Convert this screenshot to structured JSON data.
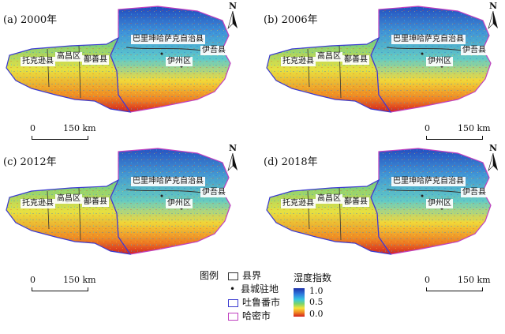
{
  "panels": [
    {
      "label": "(a) 2000年",
      "north": "N",
      "scale": {
        "zero": "0",
        "dist": "150 km"
      }
    },
    {
      "label": "(b) 2006年",
      "north": "N",
      "scale": {
        "zero": "0",
        "dist": "150 km"
      }
    },
    {
      "label": "(c) 2012年",
      "north": "N",
      "scale": {
        "zero": "0",
        "dist": "150 km"
      }
    },
    {
      "label": "(d) 2018年",
      "north": "N",
      "scale": {
        "zero": "0",
        "dist": "150 km"
      }
    }
  ],
  "places": {
    "barkol": "巴里坤哈萨克自治县",
    "yiwu": "伊吾县",
    "yizhou": "伊州区",
    "toksun": "托克逊县",
    "gaochang": "高昌区",
    "shanshan": "鄯善县"
  },
  "legend": {
    "title": "图例",
    "items": [
      {
        "symbol": "box",
        "label": "县界",
        "color": "#333333"
      },
      {
        "symbol": "dot",
        "label": "县城驻地",
        "color": "#333333"
      },
      {
        "symbol": "box",
        "label": "吐鲁番市",
        "color": "#3a3ad0"
      },
      {
        "symbol": "box",
        "label": "哈密市",
        "color": "#c040c0"
      }
    ]
  },
  "colorbar": {
    "title": "湿度指数",
    "ticks": [
      "1.0",
      "0.5",
      "0.0"
    ],
    "colors": [
      "#1c2fa8",
      "#2f7fe0",
      "#38c7e0",
      "#7cd46a",
      "#f5e33a",
      "#f08a22",
      "#d21f1f"
    ]
  },
  "colors": {
    "county_border": "#333333",
    "turpan_border": "#3a3ad0",
    "hami_border": "#c040c0"
  }
}
